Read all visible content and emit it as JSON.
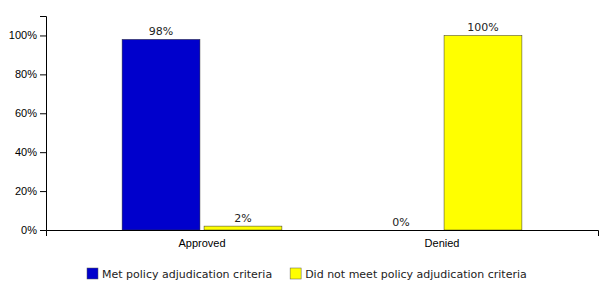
{
  "chart_data": {
    "type": "bar",
    "categories": [
      "Approved",
      "Denied"
    ],
    "series": [
      {
        "name": "Met policy adjudication criteria",
        "color": "#0000CC",
        "values": [
          98,
          0
        ],
        "value_labels": [
          "98%",
          "0%"
        ]
      },
      {
        "name": "Did not meet policy adjudication criteria",
        "color": "#FFFF00",
        "values": [
          2,
          100
        ],
        "value_labels": [
          "2%",
          "100%"
        ]
      }
    ],
    "ylim": [
      0,
      110
    ],
    "yticks": [
      {
        "value": 0,
        "label": "0%"
      },
      {
        "value": 20,
        "label": "20%"
      },
      {
        "value": 40,
        "label": "40%"
      },
      {
        "value": 60,
        "label": "60%"
      },
      {
        "value": 80,
        "label": "80%"
      },
      {
        "value": 100,
        "label": "100%"
      }
    ],
    "grid": false,
    "legend": "bottom",
    "data_labels": true
  }
}
